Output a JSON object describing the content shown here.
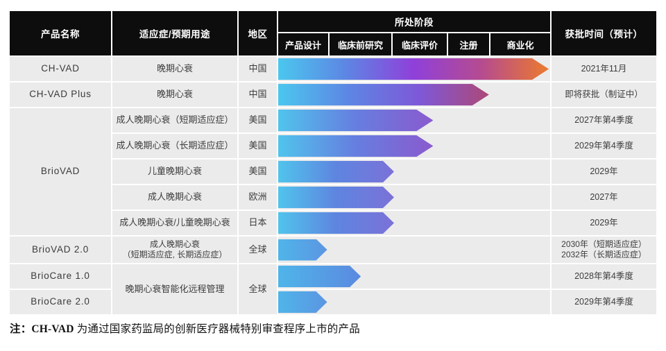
{
  "chart_data": {
    "type": "bar",
    "title": "所处阶段",
    "orientation": "horizontal",
    "xlim": [
      0,
      100
    ],
    "categories": [
      "产品设计",
      "临床前研究",
      "临床评价",
      "注册",
      "商业化"
    ],
    "rows": [
      {
        "product": "CH-VAD",
        "indication": "晚期心衰",
        "region": "中国",
        "approval": "2021年11月",
        "stage_reached": "商业化",
        "progress_percent": 99.5,
        "bar_colors": [
          "#4bc7ee",
          "#5d86e4",
          "#8f40da",
          "#b54b90",
          "#ec7a2d"
        ]
      },
      {
        "product": "CH-VAD Plus",
        "indication": "晚期心衰",
        "region": "中国",
        "approval": "即将获批（制证中）",
        "stage_reached": "注册",
        "progress_percent": 77.5,
        "bar_colors": [
          "#4bc7ee",
          "#5d86e4",
          "#7e58d8",
          "#ad4878"
        ]
      },
      {
        "product": "BrioVAD",
        "indication": "成人晚期心衰（短期适应症）",
        "region": "美国",
        "approval": "2027年第4季度",
        "stage_reached": "临床评价",
        "progress_percent": 57,
        "bar_colors": [
          "#50c4ec",
          "#667ee0",
          "#8a5ace"
        ]
      },
      {
        "product": "BrioVAD",
        "indication": "成人晚期心衰（长期适应症）",
        "region": "美国",
        "approval": "2029年第4季度",
        "stage_reached": "临床评价",
        "progress_percent": 57,
        "bar_colors": [
          "#50c4ec",
          "#667ee0",
          "#8a5ace"
        ]
      },
      {
        "product": "BrioVAD",
        "indication": "儿童晚期心衰",
        "region": "美国",
        "approval": "2029年",
        "stage_reached": "临床前研究",
        "progress_percent": 42.6,
        "bar_colors": [
          "#50c4ec",
          "#5e85e0",
          "#7b71d8"
        ]
      },
      {
        "product": "BrioVAD",
        "indication": "成人晚期心衰",
        "region": "欧洲",
        "approval": "2027年",
        "stage_reached": "临床前研究",
        "progress_percent": 42.6,
        "bar_colors": [
          "#50c4ec",
          "#5e85e0",
          "#7b71d8"
        ]
      },
      {
        "product": "BrioVAD",
        "indication": "成人晚期心衰/儿童晚期心衰",
        "region": "日本",
        "approval": "2029年",
        "stage_reached": "临床前研究",
        "progress_percent": 42.6,
        "bar_colors": [
          "#50c4ec",
          "#5e85e0",
          "#7b71d8"
        ]
      },
      {
        "product": "BrioVAD 2.0",
        "indication": "成人晚期心衰",
        "indication_line2": "（短期适应症, 长期适应症）",
        "region": "全球",
        "approval": "2030年（短期适应症）",
        "approval_line2": "2032年（长期适应症）",
        "stage_reached": "产品设计",
        "progress_percent": 18,
        "bar_colors": [
          "#4fb5e9",
          "#5c95e2"
        ]
      },
      {
        "product": "BrioCare 1.0",
        "indication": "晚期心衰智能化远程管理",
        "region": "全球",
        "approval": "2028年第4季度",
        "stage_reached": "临床前研究",
        "progress_percent": 30.4,
        "bar_colors": [
          "#4fb5e9",
          "#5b89e0"
        ]
      },
      {
        "product": "BrioCare 2.0",
        "indication": "晚期心衰智能化远程管理",
        "region": "全球",
        "approval": "2029年第4季度",
        "stage_reached": "产品设计",
        "progress_percent": 18,
        "bar_colors": [
          "#4fb5e9",
          "#5c95e2"
        ]
      }
    ]
  },
  "header": {
    "product": "产品名称",
    "indication": "适应症/预期用途",
    "region": "地区",
    "stage_group": "所处阶段",
    "stages": [
      "产品设计",
      "临床前研究",
      "临床评价",
      "注册",
      "商业化"
    ],
    "approval": "获批时间（预计）"
  },
  "note": {
    "prefix": "注：",
    "product": "CH-VAD ",
    "text": "为通过国家药监局的创新医疗器械特别审查程序上市的产品"
  },
  "colors": {
    "header_bg": "#0d0d0d",
    "header_text": "#ffffff",
    "cell_bg": "#ebebeb",
    "cell_text": "#3c3c3c",
    "page_bg": "#ffffff"
  }
}
